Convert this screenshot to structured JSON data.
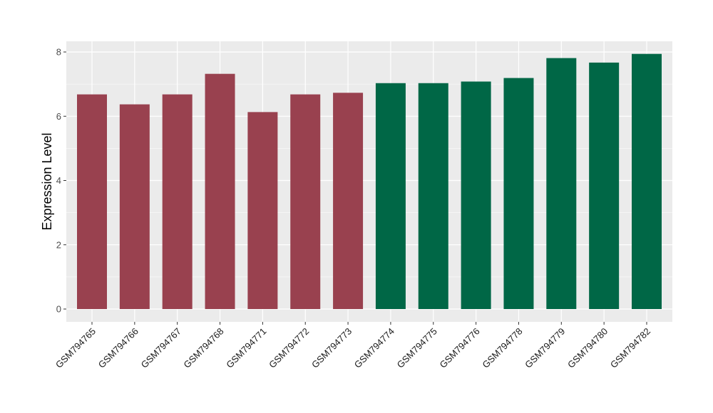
{
  "chart_data": {
    "type": "bar",
    "title": "",
    "xlabel": "",
    "ylabel": "Expression Level",
    "ylim": [
      0,
      8
    ],
    "y_ticks": [
      0,
      2,
      4,
      6,
      8
    ],
    "grid": true,
    "legend": "none",
    "categories": [
      "GSM794765",
      "GSM794766",
      "GSM794767",
      "GSM794768",
      "GSM794771",
      "GSM794772",
      "GSM794773",
      "GSM794774",
      "GSM794775",
      "GSM794776",
      "GSM794778",
      "GSM794779",
      "GSM794780",
      "GSM794782"
    ],
    "values": [
      6.68,
      6.37,
      6.68,
      7.32,
      6.13,
      6.68,
      6.73,
      7.03,
      7.03,
      7.08,
      7.19,
      7.81,
      7.67,
      7.94
    ],
    "bar_colors": [
      "#99414f",
      "#99414f",
      "#99414f",
      "#99414f",
      "#99414f",
      "#99414f",
      "#99414f",
      "#006746",
      "#006746",
      "#006746",
      "#006746",
      "#006746",
      "#006746",
      "#006746"
    ],
    "panel_color": "#ebebeb",
    "grid_color": "#ffffff"
  }
}
